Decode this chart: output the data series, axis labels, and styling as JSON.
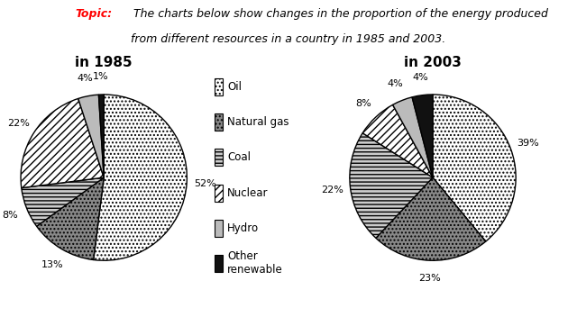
{
  "chart1_title": "in 1985",
  "chart2_title": "in 2003",
  "values_1985": [
    52,
    13,
    8,
    22,
    4,
    1
  ],
  "values_2003": [
    39,
    23,
    22,
    8,
    4,
    4
  ],
  "labels_1985": [
    "52%",
    "13%",
    "8%",
    "22%",
    "4%",
    "1%"
  ],
  "labels_2003": [
    "39%",
    "23%",
    "22%",
    "8%",
    "4%",
    "4%"
  ],
  "face_colors": [
    "white",
    "#888888",
    "#cccccc",
    "white",
    "#bbbbbb",
    "#111111"
  ],
  "hatches": [
    "....",
    "....",
    "----",
    "////",
    "",
    ""
  ],
  "legend_labels": [
    "Oil",
    "Natural gas",
    "Coal",
    "Nuclear",
    "Hydro",
    "Other\nrenewable"
  ],
  "topic_bold": "Topic:",
  "topic_rest": " The charts below show changes in the proportion of the energy produced\nfrom different resources in a country in 1985 and 2003.",
  "background": "#ffffff"
}
